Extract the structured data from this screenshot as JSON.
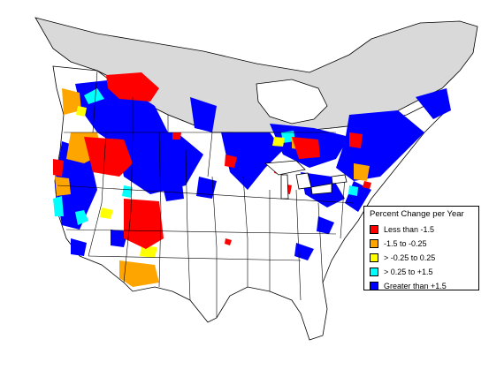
{
  "legend": {
    "title": "Percent Change per Year",
    "items": [
      {
        "label": "Less than -1.5",
        "color": "#ff0000"
      },
      {
        "label": "-1.5 to -0.25",
        "color": "#ffa500"
      },
      {
        "label": "> -0.25 to 0.25",
        "color": "#ffff00"
      },
      {
        "label": "> 0.25 to +1.5",
        "color": "#00ffff"
      },
      {
        "label": "Greater than +1.5",
        "color": "#0000ff"
      }
    ]
  },
  "colors": {
    "unsurveyed_region": "#d9d9d9",
    "boundaries": "#000000",
    "background": "#ffffff"
  }
}
